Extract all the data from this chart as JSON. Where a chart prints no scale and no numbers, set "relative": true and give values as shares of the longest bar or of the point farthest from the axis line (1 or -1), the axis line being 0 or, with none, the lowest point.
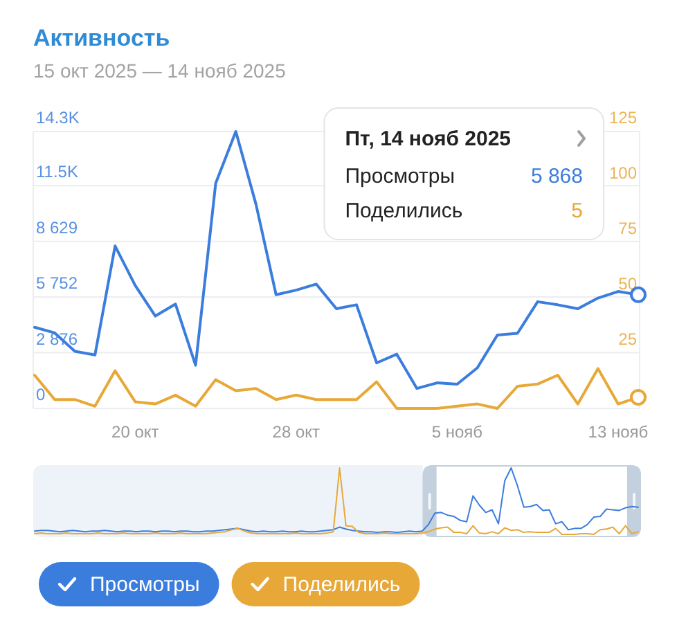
{
  "chart_data": [
    {
      "type": "line",
      "title": "Активность",
      "subtitle": "15 окт 2025 — 14 нояб 2025",
      "x": [
        "2025-10-15",
        "2025-10-16",
        "2025-10-17",
        "2025-10-18",
        "2025-10-19",
        "2025-10-20",
        "2025-10-21",
        "2025-10-22",
        "2025-10-23",
        "2025-10-24",
        "2025-10-25",
        "2025-10-26",
        "2025-10-27",
        "2025-10-28",
        "2025-10-29",
        "2025-10-30",
        "2025-10-31",
        "2025-11-01",
        "2025-11-02",
        "2025-11-03",
        "2025-11-04",
        "2025-11-05",
        "2025-11-06",
        "2025-11-07",
        "2025-11-08",
        "2025-11-09",
        "2025-11-10",
        "2025-11-11",
        "2025-11-12",
        "2025-11-13",
        "2025-11-14"
      ],
      "xlim": [
        "2025-10-15",
        "2025-11-14"
      ],
      "xticks": [
        {
          "value": "2025-10-20",
          "label": "20 окт"
        },
        {
          "value": "2025-10-28",
          "label": "28 окт"
        },
        {
          "value": "2025-11-05",
          "label": "5 нояб"
        },
        {
          "value": "2025-11-13",
          "label": "13 нояб"
        }
      ],
      "ylim": [
        0,
        14300
      ],
      "yticks": [
        0,
        {
          "value": 2876,
          "label": "2 876"
        },
        {
          "value": 5752,
          "label": "5 752"
        },
        {
          "value": 8629,
          "label": "8 629"
        },
        {
          "value": 11500,
          "label": "11.5K"
        },
        {
          "value": 14300,
          "label": "14.3K"
        }
      ],
      "y2lim": [
        0,
        125
      ],
      "y2ticks": [
        25,
        50,
        75,
        100,
        125
      ],
      "grid": "y",
      "legend": "bottom left",
      "series": [
        {
          "name": "Просмотры",
          "color": "#3b7ddd",
          "values": [
            4190,
            3900,
            2950,
            2760,
            8390,
            6350,
            4770,
            5390,
            2230,
            11630,
            14300,
            10550,
            5870,
            6110,
            6420,
            5150,
            5350,
            2350,
            2800,
            1030,
            1320,
            1250,
            2090,
            3790,
            3880,
            5510,
            5350,
            5150,
            5700,
            6040,
            5868
          ]
        },
        {
          "name": "Поделились",
          "color": "#e8a838",
          "axis": "y2",
          "values": [
            15,
            4,
            4,
            1,
            17,
            3,
            2,
            6,
            1,
            13,
            8,
            9,
            4,
            6,
            4,
            4,
            4,
            12,
            0,
            0,
            0,
            1,
            2,
            0,
            10,
            11,
            15,
            2,
            18,
            2,
            5
          ]
        },
        {
          "type": "scatter",
          "marker": "circle",
          "color": "#3b7ddd",
          "x": [
            "2025-11-14"
          ],
          "values": [
            5868
          ]
        },
        {
          "type": "scatter",
          "marker": "circle",
          "color": "#e8a838",
          "axis": "y2",
          "x": [
            "2025-11-14"
          ],
          "values": [
            5
          ]
        }
      ],
      "annotations": [
        "Пт, 14 нояб 2025",
        "Просмотры",
        "5 868",
        "Поделились",
        "5"
      ]
    },
    {
      "type": "line",
      "relative": true,
      "categories": [
        null,
        null,
        null,
        null,
        null,
        null,
        null,
        null,
        null,
        null,
        null,
        null,
        null,
        null,
        null,
        null,
        null,
        null,
        null,
        null,
        null,
        null,
        null,
        null,
        null,
        null,
        null,
        null,
        null,
        null,
        null,
        null,
        null,
        null,
        null,
        null,
        null,
        null,
        null,
        null,
        null,
        null,
        null,
        null,
        null,
        null,
        null,
        null,
        null,
        null,
        null,
        null,
        null,
        null,
        null,
        null,
        null,
        null,
        null,
        null,
        null,
        null,
        null,
        null,
        null,
        null,
        null,
        null,
        null,
        null,
        null,
        null,
        null,
        null,
        null,
        null,
        null,
        null,
        null,
        null,
        null,
        null,
        null,
        null,
        null,
        null,
        null,
        null,
        null,
        null,
        null,
        null,
        null,
        null,
        null,
        null
      ],
      "series": [
        {
          "color": "#3b7ddd",
          "values": [
            0.05,
            0.06,
            0.06,
            0.05,
            0.04,
            0.05,
            0.06,
            0.05,
            0.04,
            0.05,
            0.05,
            0.06,
            0.05,
            0.04,
            0.05,
            0.05,
            0.04,
            0.05,
            0.05,
            0.04,
            0.05,
            0.05,
            0.04,
            0.05,
            0.05,
            0.04,
            0.04,
            0.05,
            0.05,
            0.06,
            0.07,
            0.08,
            0.09,
            0.07,
            0.05,
            0.04,
            0.05,
            0.04,
            0.04,
            0.05,
            0.04,
            0.04,
            0.05,
            0.04,
            0.04,
            0.05,
            0.06,
            0.07,
            0.11,
            0.08,
            0.06,
            0.05,
            0.04,
            0.04,
            0.03,
            0.04,
            0.04,
            0.03,
            0.04,
            0.05,
            0.04,
            0.05,
            0.15,
            0.32,
            0.33,
            0.29,
            0.27,
            0.21,
            0.19,
            0.58,
            0.44,
            0.33,
            0.37,
            0.16,
            0.81,
            1,
            0.73,
            0.41,
            0.42,
            0.45,
            0.36,
            0.37,
            0.16,
            0.19,
            0.07,
            0.09,
            0.09,
            0.15,
            0.26,
            0.27,
            0.38,
            0.37,
            0.36,
            0.4,
            0.42,
            0.41
          ]
        },
        {
          "color": "#e8a838",
          "values": [
            0.01,
            0.02,
            0.01,
            0.01,
            0.01,
            0.02,
            0.01,
            0.01,
            0.01,
            0.01,
            0.02,
            0.01,
            0.01,
            0.01,
            0.02,
            0.01,
            0.01,
            0.01,
            0.01,
            0.02,
            0.01,
            0.01,
            0.01,
            0.02,
            0.01,
            0.01,
            0.01,
            0.01,
            0.02,
            0.03,
            0.04,
            0.07,
            0.09,
            0.05,
            0.02,
            0.01,
            0.01,
            0.01,
            0.01,
            0.01,
            0.01,
            0.02,
            0.01,
            0.01,
            0.01,
            0.01,
            0.02,
            0.04,
            1,
            0.13,
            0.12,
            0.03,
            0.01,
            0.01,
            0.01,
            0.02,
            0.01,
            0.01,
            0.01,
            0.01,
            0.01,
            0.02,
            0.04,
            0.08,
            0.1,
            0.11,
            0.03,
            0.03,
            0.01,
            0.13,
            0.02,
            0.01,
            0.04,
            0.01,
            0.1,
            0.06,
            0.07,
            0.03,
            0.04,
            0.03,
            0.03,
            0.03,
            0.09,
            0,
            0,
            0,
            0.01,
            0.01,
            0,
            0.07,
            0.08,
            0.11,
            0.01,
            0.13,
            0.01,
            0.04
          ]
        }
      ]
    }
  ]
}
